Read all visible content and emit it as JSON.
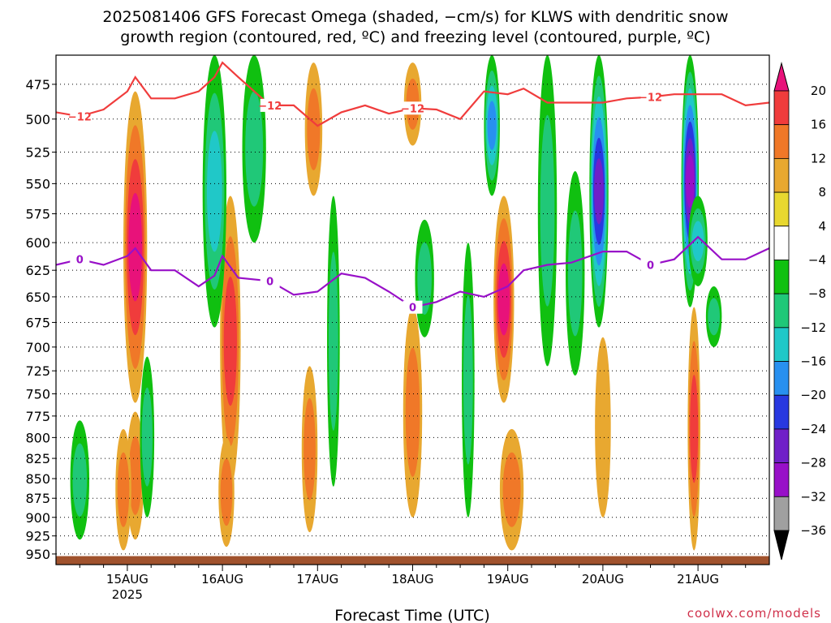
{
  "title_line1": "2025081406 GFS Forecast Omega (shaded, −cm/s) for KLWS with dendritic snow",
  "title_line2": "growth region (contoured, red, ºC) and freezing level (contoured, purple, ºC)",
  "credit": "coolwx.com/models",
  "chart_data": {
    "type": "heatmap",
    "xlabel": "Forecast Time (UTC)",
    "x_tick_labels": [
      "15AUG",
      "16AUG",
      "17AUG",
      "18AUG",
      "19AUG",
      "20AUG",
      "21AUG"
    ],
    "x_tick_hours": [
      18,
      42,
      66,
      90,
      114,
      138,
      162
    ],
    "x_sublabel": "2025",
    "x_range_hours": [
      0,
      180
    ],
    "ylabel": "",
    "y_tick_labels": [
      "475",
      "500",
      "525",
      "550",
      "575",
      "600",
      "625",
      "650",
      "675",
      "700",
      "725",
      "750",
      "775",
      "800",
      "825",
      "850",
      "875",
      "900",
      "925",
      "950"
    ],
    "y_range_hpa": [
      455,
      965
    ],
    "y_scale": "log-pressure",
    "grid": "dotted horizontal at each pressure level",
    "colorbar": {
      "position": "right",
      "labels": [
        "20",
        "16",
        "12",
        "8",
        "4",
        "−4",
        "−8",
        "−12",
        "−16",
        "−20",
        "−24",
        "−28",
        "−32",
        "−36"
      ],
      "colors": [
        "#e8127a",
        "#f03c3c",
        "#f07828",
        "#e8a830",
        "#e8d830",
        "#ffffff",
        "#10c010",
        "#20c878",
        "#20c8c8",
        "#2890f0",
        "#2838e0",
        "#7020c8",
        "#9810c8",
        "#a0a0a0",
        "#000000"
      ]
    },
    "omega_features": [
      {
        "t": 20,
        "p": [
          480,
          760
        ],
        "w": 3.0,
        "value": 18
      },
      {
        "t": 20,
        "p": [
          770,
          930
        ],
        "w": 2.2,
        "value": 10
      },
      {
        "t": 17,
        "p": [
          790,
          945
        ],
        "w": 2.0,
        "value": 8
      },
      {
        "t": 44,
        "p": [
          560,
          860
        ],
        "w": 2.6,
        "value": 14
      },
      {
        "t": 43,
        "p": [
          800,
          940
        ],
        "w": 2.0,
        "value": 9
      },
      {
        "t": 65,
        "p": [
          460,
          560
        ],
        "w": 2.2,
        "value": 10
      },
      {
        "t": 64,
        "p": [
          720,
          920
        ],
        "w": 2.0,
        "value": 8
      },
      {
        "t": 90,
        "p": [
          460,
          520
        ],
        "w": 2.2,
        "value": 8
      },
      {
        "t": 90,
        "p": [
          660,
          900
        ],
        "w": 2.4,
        "value": 10
      },
      {
        "t": 113,
        "p": [
          560,
          760
        ],
        "w": 2.6,
        "value": 18
      },
      {
        "t": 115,
        "p": [
          790,
          945
        ],
        "w": 3.0,
        "value": 10
      },
      {
        "t": 138,
        "p": [
          690,
          900
        ],
        "w": 2.0,
        "value": 6
      },
      {
        "t": 161,
        "p": [
          660,
          945
        ],
        "w": 1.6,
        "value": 12
      },
      {
        "t": 6,
        "p": [
          780,
          930
        ],
        "w": 2.4,
        "value": -10
      },
      {
        "t": 23,
        "p": [
          710,
          900
        ],
        "w": 1.8,
        "value": -8
      },
      {
        "t": 40,
        "p": [
          455,
          680
        ],
        "w": 3.0,
        "value": -12
      },
      {
        "t": 50,
        "p": [
          455,
          600
        ],
        "w": 3.0,
        "value": -10
      },
      {
        "t": 70,
        "p": [
          560,
          860
        ],
        "w": 1.6,
        "value": -8
      },
      {
        "t": 93,
        "p": [
          580,
          690
        ],
        "w": 2.4,
        "value": -10
      },
      {
        "t": 110,
        "p": [
          455,
          560
        ],
        "w": 2.0,
        "value": -16
      },
      {
        "t": 124,
        "p": [
          455,
          720
        ],
        "w": 2.4,
        "value": -10
      },
      {
        "t": 137,
        "p": [
          455,
          680
        ],
        "w": 2.4,
        "value": -26
      },
      {
        "t": 131,
        "p": [
          540,
          730
        ],
        "w": 2.4,
        "value": -8
      },
      {
        "t": 160,
        "p": [
          455,
          660
        ],
        "w": 2.2,
        "value": -30
      },
      {
        "t": 162,
        "p": [
          560,
          640
        ],
        "w": 2.4,
        "value": -12
      },
      {
        "t": 166,
        "p": [
          640,
          700
        ],
        "w": 2.0,
        "value": -8
      },
      {
        "t": 104,
        "p": [
          600,
          900
        ],
        "w": 1.6,
        "value": -8
      }
    ],
    "dendritic_growth_zone_-12C": {
      "t": [
        0,
        6,
        12,
        18,
        20,
        24,
        30,
        36,
        40,
        42,
        46,
        54,
        60,
        66,
        72,
        78,
        84,
        90,
        96,
        102,
        108,
        114,
        118,
        124,
        130,
        138,
        144,
        150,
        156,
        162,
        168,
        174,
        180
      ],
      "p": [
        495,
        498,
        493,
        480,
        470,
        485,
        485,
        480,
        470,
        460,
        470,
        490,
        490,
        505,
        495,
        490,
        496,
        492,
        493,
        500,
        480,
        482,
        478,
        488,
        488,
        488,
        485,
        484,
        482,
        482,
        482,
        490,
        488
      ],
      "label": "−12"
    },
    "freezing_level_0C": {
      "t": [
        0,
        6,
        12,
        18,
        20,
        24,
        30,
        36,
        40,
        42,
        46,
        54,
        60,
        66,
        72,
        78,
        84,
        90,
        96,
        102,
        108,
        114,
        118,
        124,
        130,
        138,
        144,
        150,
        156,
        162,
        168,
        174,
        180
      ],
      "p": [
        620,
        615,
        620,
        612,
        605,
        625,
        625,
        640,
        630,
        612,
        632,
        635,
        648,
        645,
        628,
        632,
        645,
        660,
        655,
        645,
        650,
        640,
        625,
        620,
        618,
        608,
        608,
        620,
        615,
        595,
        615,
        615,
        605
      ],
      "label": "0"
    },
    "terrain_surface_hpa": 953
  }
}
